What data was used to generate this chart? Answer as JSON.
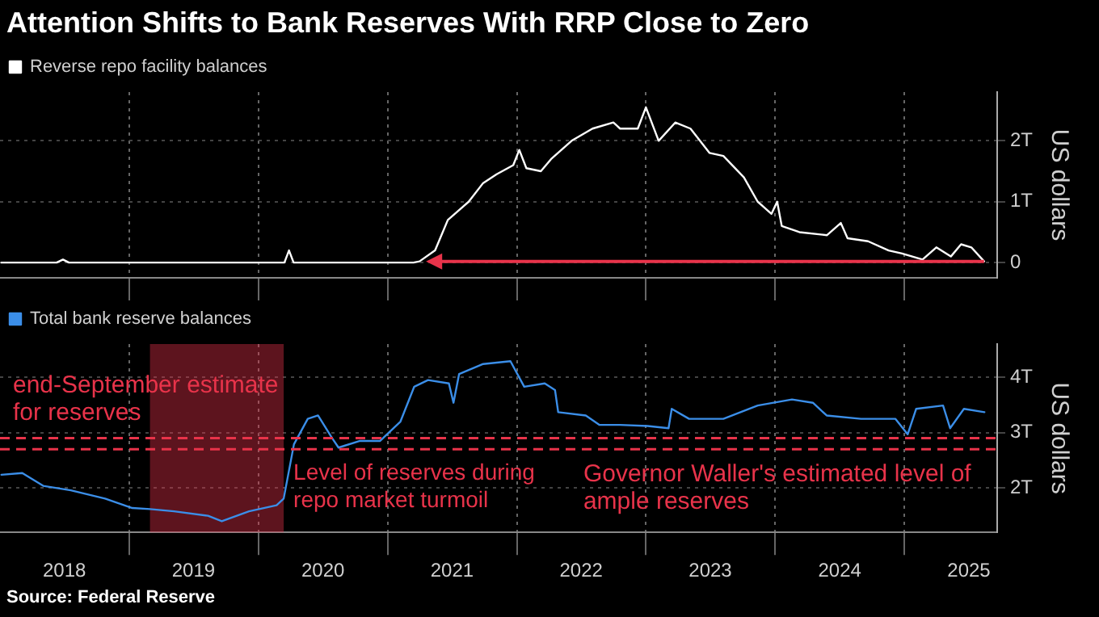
{
  "chart_data": [
    {
      "type": "line",
      "title": "Attention Shifts to Bank Reserves With RRP Close to Zero",
      "ylabel": "US dollars",
      "legend": "top left",
      "grid": true,
      "tick_labels": "y",
      "xlim": [
        "2018-01-01",
        "2025-09-20"
      ],
      "xticks": [
        {
          "value": "2019-01-01",
          "label": null
        },
        {
          "value": "2020-01-01",
          "label": null
        },
        {
          "value": "2021-01-01",
          "label": null
        },
        {
          "value": "2022-01-01",
          "label": null
        },
        {
          "value": "2023-01-01",
          "label": null
        },
        {
          "value": "2024-01-01",
          "label": null
        },
        {
          "value": "2025-01-01",
          "label": null
        }
      ],
      "ylim": [
        -0.25,
        2.8
      ],
      "yticks": [
        0,
        {
          "value": 1,
          "label": "1T"
        },
        {
          "value": 2,
          "label": "2T"
        }
      ],
      "series": [
        {
          "name": "Reverse repo facility balances",
          "color": "#ffffff",
          "x": [
            "2018-01-05",
            "2018-06-10",
            "2018-06-28",
            "2018-07-15",
            "2019-01-01",
            "2020-03-15",
            "2020-03-28",
            "2020-04-10",
            "2021-03-15",
            "2021-04-01",
            "2021-05-15",
            "2021-06-20",
            "2021-08-18",
            "2021-09-27",
            "2021-11-05",
            "2021-12-22",
            "2022-01-08",
            "2022-01-28",
            "2022-03-10",
            "2022-04-08",
            "2022-06-05",
            "2022-08-03",
            "2022-10-01",
            "2022-10-20",
            "2022-12-09",
            "2023-01-01",
            "2023-02-06",
            "2023-03-25",
            "2023-05-07",
            "2023-06-30",
            "2023-08-08",
            "2023-10-05",
            "2023-11-13",
            "2023-12-22",
            "2024-01-07",
            "2024-01-20",
            "2024-03-10",
            "2024-05-27",
            "2024-07-05",
            "2024-07-24",
            "2024-09-20",
            "2024-11-17",
            "2024-12-25",
            "2025-02-21",
            "2025-04-01",
            "2025-05-12",
            "2025-06-10",
            "2025-07-09",
            "2025-08-14"
          ],
          "values": [
            0,
            0,
            0.05,
            0,
            0,
            0,
            0.2,
            0,
            0,
            0.02,
            0.2,
            0.7,
            1.0,
            1.3,
            1.45,
            1.6,
            1.85,
            1.55,
            1.5,
            1.7,
            2.0,
            2.2,
            2.3,
            2.2,
            2.2,
            2.55,
            2.0,
            2.3,
            2.2,
            1.8,
            1.75,
            1.4,
            1.0,
            0.8,
            1.0,
            0.6,
            0.5,
            0.45,
            0.65,
            0.4,
            0.35,
            0.2,
            0.15,
            0.05,
            0.25,
            0.1,
            0.3,
            0.25,
            0.02
          ]
        }
      ]
    },
    {
      "type": "line",
      "ylabel": "US dollars",
      "legend": "top left",
      "grid": true,
      "xlim": [
        "2018-01-01",
        "2025-09-20"
      ],
      "xticks": [
        {
          "value": "2018-07-02",
          "label": "2018"
        },
        {
          "value": "2019-01-01",
          "label": null
        },
        {
          "value": "2019-07-02",
          "label": "2019"
        },
        {
          "value": "2020-01-01",
          "label": null
        },
        {
          "value": "2020-07-02",
          "label": "2020"
        },
        {
          "value": "2021-01-01",
          "label": null
        },
        {
          "value": "2021-07-02",
          "label": "2021"
        },
        {
          "value": "2022-01-01",
          "label": null
        },
        {
          "value": "2022-07-02",
          "label": "2022"
        },
        {
          "value": "2023-01-01",
          "label": null
        },
        {
          "value": "2023-07-02",
          "label": "2023"
        },
        {
          "value": "2024-01-01",
          "label": null
        },
        {
          "value": "2024-07-02",
          "label": "2024"
        },
        {
          "value": "2025-01-01",
          "label": null
        },
        {
          "value": "2025-07-02",
          "label": "2025"
        }
      ],
      "ylim": [
        1.2,
        4.6
      ],
      "yticks": [
        {
          "value": 2,
          "label": "2T"
        },
        {
          "value": 3,
          "label": "3T"
        },
        {
          "value": 4,
          "label": "4T"
        }
      ],
      "series": [
        {
          "name": "Total bank reserve balances",
          "color": "#3b8ee8",
          "x": [
            "2018-01-05",
            "2018-03-05",
            "2018-05-03",
            "2018-07-20",
            "2018-10-25",
            "2019-01-10",
            "2019-03-01",
            "2019-05-08",
            "2019-08-12",
            "2019-09-20",
            "2019-12-06",
            "2020-02-22",
            "2020-03-13",
            "2020-04-11",
            "2020-05-20",
            "2020-06-18",
            "2020-07-27",
            "2020-08-15",
            "2020-10-13",
            "2020-12-10",
            "2021-02-06",
            "2021-03-17",
            "2021-04-25",
            "2021-06-23",
            "2021-07-06",
            "2021-07-22",
            "2021-09-28",
            "2021-12-14",
            "2022-01-22",
            "2022-03-21",
            "2022-04-19",
            "2022-04-28",
            "2022-07-15",
            "2022-08-23",
            "2022-10-20",
            "2023-01-06",
            "2023-03-06",
            "2023-03-15",
            "2023-05-03",
            "2023-08-08",
            "2023-11-13",
            "2024-02-18",
            "2024-04-17",
            "2024-05-26",
            "2024-08-31",
            "2024-12-06",
            "2025-01-10",
            "2025-02-03",
            "2025-04-20",
            "2025-05-10",
            "2025-06-18",
            "2025-08-15"
          ],
          "values": [
            2.24,
            2.27,
            2.04,
            1.96,
            1.81,
            1.64,
            1.62,
            1.58,
            1.5,
            1.4,
            1.58,
            1.69,
            1.81,
            2.79,
            3.25,
            3.31,
            2.91,
            2.73,
            2.85,
            2.85,
            3.2,
            3.83,
            3.95,
            3.89,
            3.54,
            4.06,
            4.24,
            4.29,
            3.83,
            3.89,
            3.77,
            3.37,
            3.31,
            3.14,
            3.14,
            3.12,
            3.08,
            3.43,
            3.25,
            3.25,
            3.49,
            3.6,
            3.54,
            3.31,
            3.25,
            3.25,
            2.97,
            3.43,
            3.49,
            3.08,
            3.43,
            3.37
          ]
        }
      ],
      "ref_lines": [
        {
          "axis": "y",
          "value": 2.9,
          "label": "end-September estimate for reserves",
          "color": "#e8334a",
          "line_style": "dashed"
        },
        {
          "axis": "y",
          "value": 2.7,
          "label": "Governor Waller's estimated level of ample reserves",
          "color": "#e8334a",
          "line_style": "dashed"
        }
      ],
      "bands": [
        {
          "axis": "x",
          "from": "2019-03-01",
          "to": "2020-03-13",
          "label": "Level of reserves during repo market turmoil",
          "color": "#e8334a"
        }
      ],
      "annotations": [
        "Source: Federal Reserve"
      ]
    }
  ]
}
